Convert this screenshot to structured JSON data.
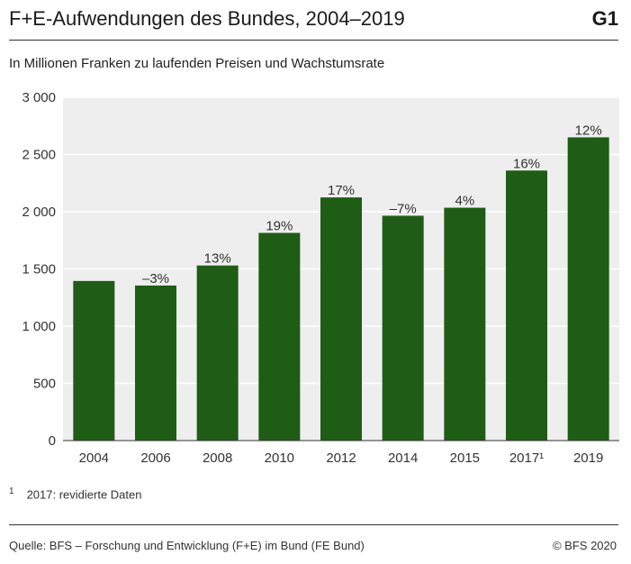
{
  "header": {
    "title": "F+E-Aufwendungen des Bundes, 2004–2019",
    "tag": "G1",
    "subtitle": "In Millionen Franken zu laufenden Preisen und Wachstumsrate"
  },
  "footnote": {
    "mark": "1",
    "text": "2017: revidierte Daten"
  },
  "footer": {
    "source": "Quelle: BFS – Forschung und Entwicklung (F+E) im Bund (FE Bund)",
    "copyright": "© BFS 2020"
  },
  "chart_data": {
    "type": "bar",
    "title": "F+E-Aufwendungen des Bundes, 2004–2019",
    "subtitle": "In Millionen Franken zu laufenden Preisen und Wachstumsrate",
    "categories": [
      "2004",
      "2006",
      "2008",
      "2010",
      "2012",
      "2014",
      "2015",
      "2017¹",
      "2019"
    ],
    "values": [
      1395,
      1355,
      1530,
      1815,
      2125,
      1965,
      2035,
      2360,
      2650
    ],
    "data_labels": [
      "",
      "–3%",
      "13%",
      "19%",
      "17%",
      "–7%",
      "4%",
      "16%",
      "12%"
    ],
    "ylim": [
      0,
      3000
    ],
    "yticks": [
      0,
      500,
      1000,
      1500,
      2000,
      2500,
      3000
    ],
    "ytick_labels": [
      "0",
      "500",
      "1 000",
      "1 500",
      "2 000",
      "2 500",
      "3 000"
    ],
    "grid": true,
    "bar_color": "#1f5c16",
    "background_color": "#eeeeee",
    "grid_color": "#ffffff"
  }
}
